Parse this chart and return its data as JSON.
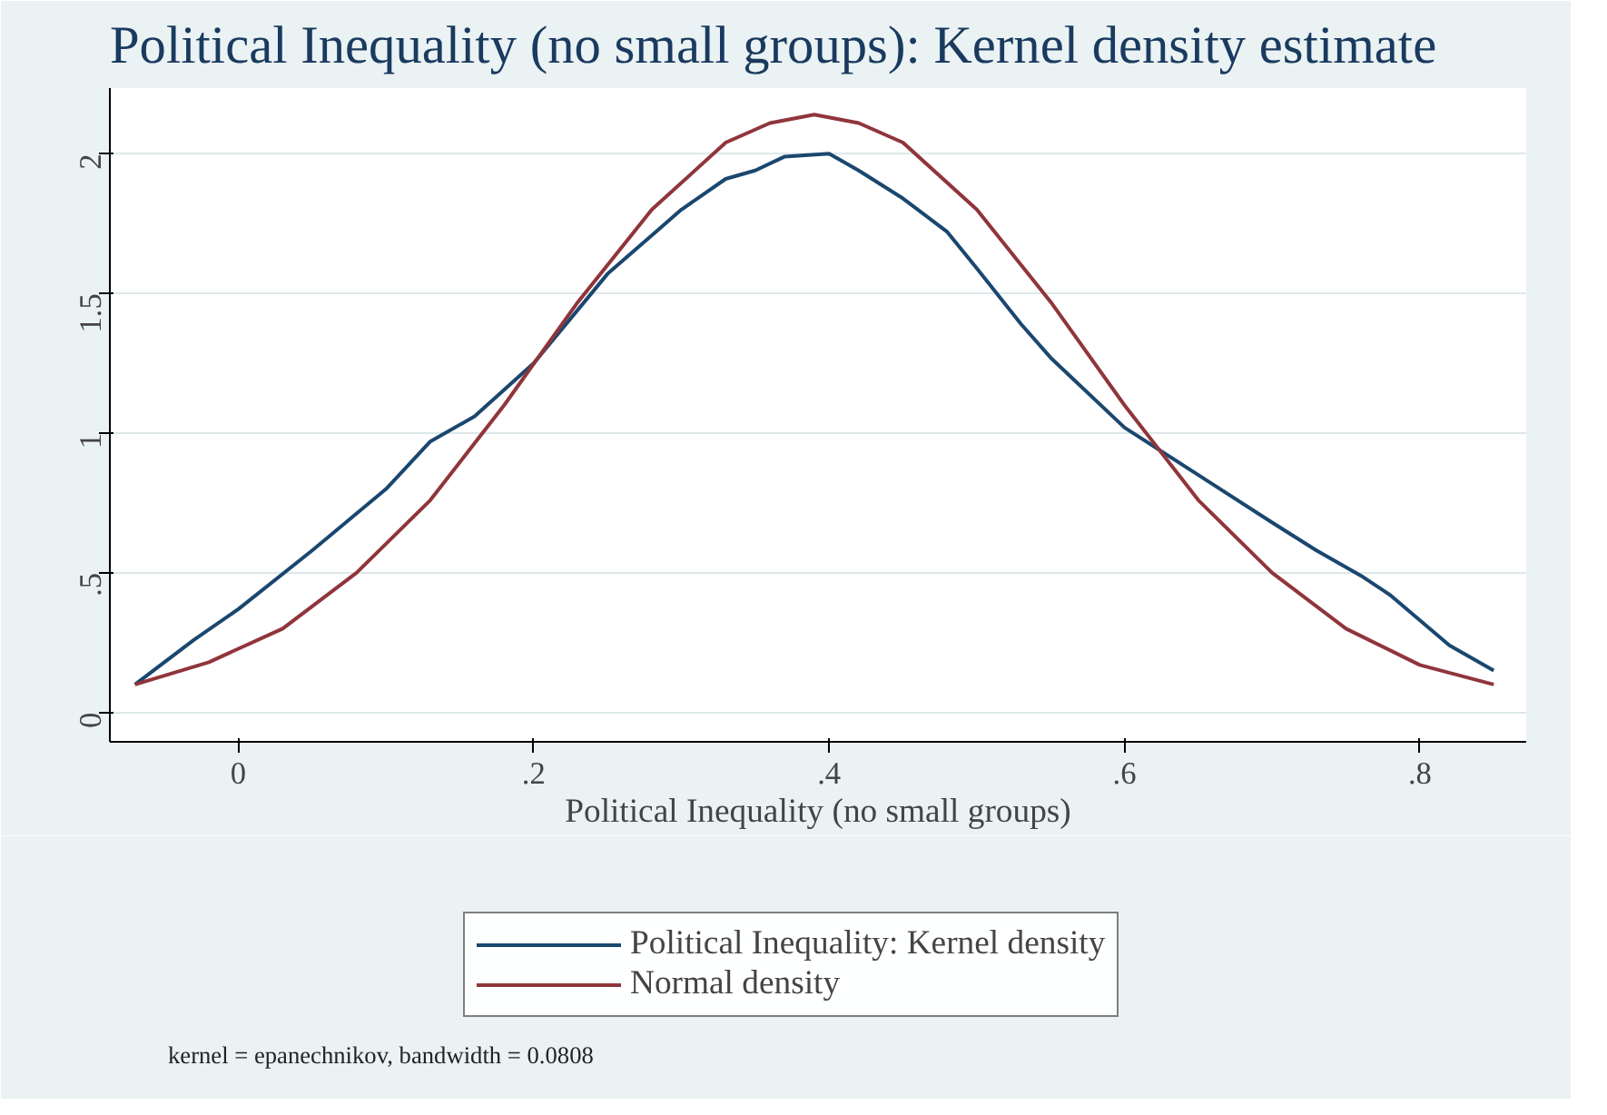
{
  "chart_data": {
    "type": "line",
    "title": "Political Inequality (no small groups): Kernel density estimate",
    "xlabel": "Political Inequality (no small groups)",
    "annotations": [
      "kernel = epanechnikov, bandwidth = 0.0808"
    ],
    "xlim": [
      -0.087,
      0.872
    ],
    "ylim": [
      -0.105,
      2.235
    ],
    "xticks": [
      {
        "value": 0,
        "label": "0"
      },
      {
        "value": 0.2,
        "label": ".2"
      },
      {
        "value": 0.4,
        "label": ".4"
      },
      {
        "value": 0.6,
        "label": ".6"
      },
      {
        "value": 0.8,
        "label": ".8"
      }
    ],
    "yticks": [
      {
        "value": 0,
        "label": "0"
      },
      {
        "value": 0.5,
        "label": ".5"
      },
      {
        "value": 1,
        "label": "1"
      },
      {
        "value": 1.5,
        "label": "1.5"
      },
      {
        "value": 2,
        "label": "2"
      }
    ],
    "grid": "y",
    "legend": "bottom",
    "line_style": "solid",
    "series": [
      {
        "name": "Political Inequality: Kernel density",
        "color": "#1a476f",
        "x": [
          -0.07,
          -0.03,
          0,
          0.05,
          0.1,
          0.13,
          0.16,
          0.2,
          0.25,
          0.3,
          0.33,
          0.35,
          0.37,
          0.4,
          0.42,
          0.45,
          0.48,
          0.5,
          0.53,
          0.55,
          0.6,
          0.65,
          0.7,
          0.73,
          0.76,
          0.78,
          0.82,
          0.85
        ],
        "values": [
          0.1,
          0.26,
          0.37,
          0.58,
          0.8,
          0.97,
          1.06,
          1.25,
          1.57,
          1.8,
          1.91,
          1.94,
          1.99,
          2.0,
          1.94,
          1.84,
          1.72,
          1.59,
          1.39,
          1.27,
          1.02,
          0.85,
          0.68,
          0.58,
          0.49,
          0.42,
          0.24,
          0.15
        ]
      },
      {
        "name": "Normal density",
        "color": "#90353b",
        "x": [
          -0.07,
          -0.02,
          0.03,
          0.08,
          0.13,
          0.18,
          0.23,
          0.28,
          0.33,
          0.36,
          0.39,
          0.42,
          0.45,
          0.5,
          0.55,
          0.6,
          0.65,
          0.7,
          0.75,
          0.8,
          0.85
        ],
        "values": [
          0.1,
          0.18,
          0.3,
          0.5,
          0.76,
          1.1,
          1.47,
          1.8,
          2.04,
          2.11,
          2.14,
          2.11,
          2.04,
          1.8,
          1.47,
          1.1,
          0.76,
          0.5,
          0.3,
          0.17,
          0.1
        ]
      }
    ]
  }
}
